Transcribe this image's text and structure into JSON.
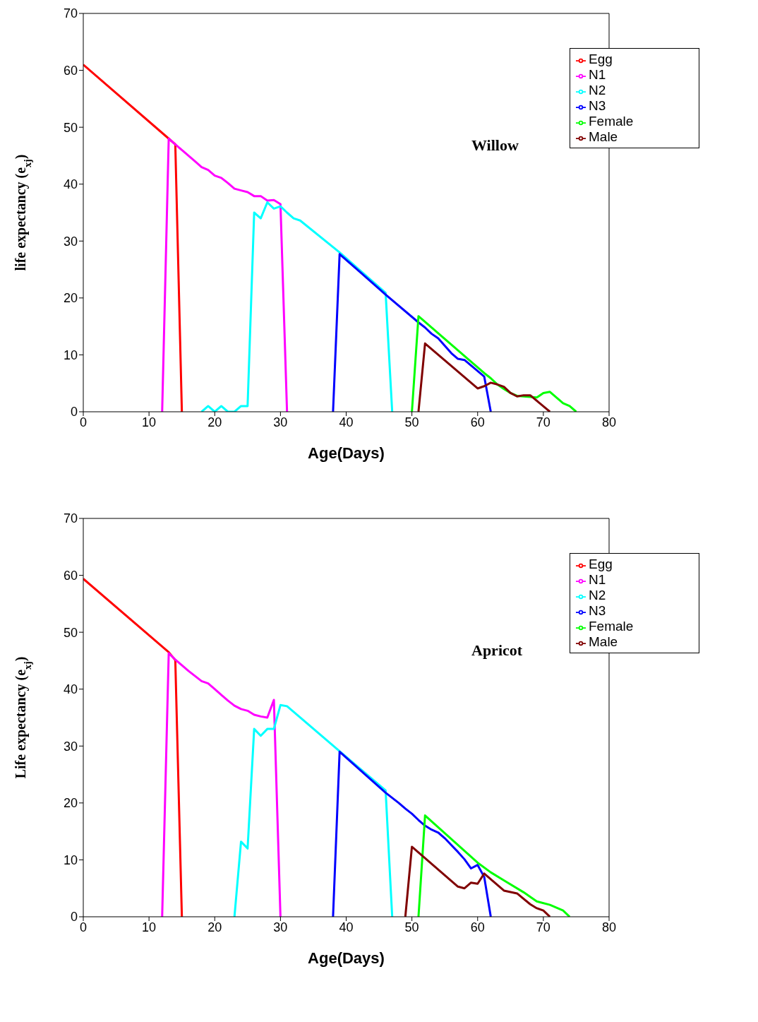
{
  "chart_data": [
    {
      "type": "line",
      "xlabel": "Age(Days)",
      "ylabel": "life expectancy (e$_{xj}$)",
      "annotations": [
        "Willow"
      ],
      "xlim": [
        0,
        80
      ],
      "xticks": [
        0,
        10,
        20,
        30,
        40,
        50,
        60,
        70,
        80
      ],
      "ylim": [
        0,
        70
      ],
      "yticks": [
        0,
        10,
        20,
        30,
        40,
        50,
        60,
        70
      ],
      "grid": false,
      "legend": "top right",
      "marker": "none",
      "line_style": "solid",
      "series": [
        {
          "name": "Egg",
          "color": "#ff0000",
          "x": [
            0,
            13,
            14,
            15
          ],
          "values": [
            61,
            48,
            47,
            0
          ]
        },
        {
          "name": "N1",
          "color": "#ff00ff",
          "x": [
            12,
            13,
            14,
            15,
            16,
            17,
            18,
            19,
            20,
            21,
            22,
            23,
            24,
            25,
            26,
            27,
            28,
            29,
            30,
            31
          ],
          "values": [
            0,
            48,
            47,
            46,
            45,
            44,
            43,
            42.5,
            41.5,
            41.1,
            40.2,
            39.2,
            38.9,
            38.6,
            37.9,
            37.9,
            37.1,
            37.2,
            36.5,
            0
          ]
        },
        {
          "name": "N2",
          "color": "#00ffff",
          "x": [
            18,
            19,
            20,
            21,
            22,
            23,
            24,
            25,
            26,
            27,
            28,
            29,
            30,
            31,
            32,
            33,
            39,
            46,
            47
          ],
          "values": [
            0,
            1,
            0,
            1,
            0,
            0,
            1,
            1,
            35,
            34,
            36.8,
            35.7,
            36.1,
            35,
            34,
            33.6,
            28,
            20.9,
            0
          ]
        },
        {
          "name": "N3",
          "color": "#0000ff",
          "x": [
            38,
            39,
            46,
            51,
            52,
            53,
            54,
            55,
            56,
            57,
            58,
            61,
            62
          ],
          "values": [
            0,
            27.7,
            20.6,
            15.7,
            14.8,
            13.7,
            12.9,
            11.6,
            10.3,
            9.3,
            9.1,
            6.2,
            0
          ]
        },
        {
          "name": "Female",
          "color": "#00ff00",
          "x": [
            50,
            51,
            61,
            62,
            63,
            64,
            65,
            66,
            67,
            68,
            69,
            70,
            71,
            72,
            73,
            74,
            75
          ],
          "values": [
            0,
            16.8,
            6.8,
            5.9,
            4.8,
            4,
            3.3,
            2.8,
            2.7,
            2.6,
            2.5,
            3.3,
            3.5,
            2.5,
            1.5,
            1,
            0
          ]
        },
        {
          "name": "Male",
          "color": "#800000",
          "x": [
            51,
            52,
            60,
            61,
            62,
            63,
            64,
            65,
            66,
            67,
            68,
            71
          ],
          "values": [
            0,
            12,
            4.1,
            4.5,
            5.1,
            4.8,
            4.4,
            3.3,
            2.7,
            2.9,
            2.9,
            0
          ]
        }
      ]
    },
    {
      "type": "line",
      "xlabel": "Age(Days)",
      "ylabel": "Life expectancy (e$_{xj}$)",
      "annotations": [
        "Apricot"
      ],
      "xlim": [
        0,
        80
      ],
      "xticks": [
        0,
        10,
        20,
        30,
        40,
        50,
        60,
        70,
        80
      ],
      "ylim": [
        0,
        70
      ],
      "yticks": [
        0,
        10,
        20,
        30,
        40,
        50,
        60,
        70
      ],
      "grid": false,
      "legend": "top right",
      "marker": "none",
      "line_style": "solid",
      "series": [
        {
          "name": "Egg",
          "color": "#ff0000",
          "x": [
            0,
            13,
            14,
            15
          ],
          "values": [
            59.4,
            46.5,
            45.1,
            0
          ]
        },
        {
          "name": "N1",
          "color": "#ff00ff",
          "x": [
            12,
            13,
            14,
            15,
            16,
            17,
            18,
            19,
            20,
            21,
            22,
            23,
            24,
            25,
            26,
            27,
            28,
            29,
            30
          ],
          "values": [
            0,
            46.3,
            45.2,
            44.2,
            43.2,
            42.3,
            41.4,
            41,
            40,
            39,
            38,
            37.1,
            36.5,
            36.2,
            35.5,
            35.2,
            35,
            38.1,
            0
          ]
        },
        {
          "name": "N2",
          "color": "#00ffff",
          "x": [
            23,
            24,
            25,
            26,
            27,
            28,
            29,
            30,
            31,
            39,
            46,
            47
          ],
          "values": [
            0,
            13.2,
            12,
            33,
            31.8,
            33,
            33,
            37.2,
            37,
            29.1,
            22.2,
            0
          ]
        },
        {
          "name": "N3",
          "color": "#0000ff",
          "x": [
            38,
            39,
            46,
            48,
            49,
            50,
            51,
            52,
            53,
            54,
            55,
            56,
            57,
            58,
            59,
            60,
            61,
            62
          ],
          "values": [
            0,
            29,
            21.8,
            20,
            19,
            18.1,
            17,
            16,
            15.3,
            14.8,
            13.8,
            12.6,
            11.4,
            10.1,
            8.5,
            9.1,
            7,
            0
          ]
        },
        {
          "name": "Female",
          "color": "#00ff00",
          "x": [
            51,
            52,
            60,
            62,
            64,
            67,
            69,
            71,
            73,
            74
          ],
          "values": [
            0,
            17.8,
            9.5,
            7.8,
            6.4,
            4.3,
            2.7,
            2.1,
            1.1,
            0
          ]
        },
        {
          "name": "Male",
          "color": "#800000",
          "x": [
            49,
            50,
            57,
            58,
            59,
            60,
            61,
            64,
            66,
            68,
            69,
            70,
            71
          ],
          "values": [
            0,
            12.3,
            5.3,
            5,
            6,
            5.8,
            7.6,
            4.6,
            4.1,
            2.2,
            1.5,
            1.1,
            0
          ]
        }
      ]
    }
  ]
}
